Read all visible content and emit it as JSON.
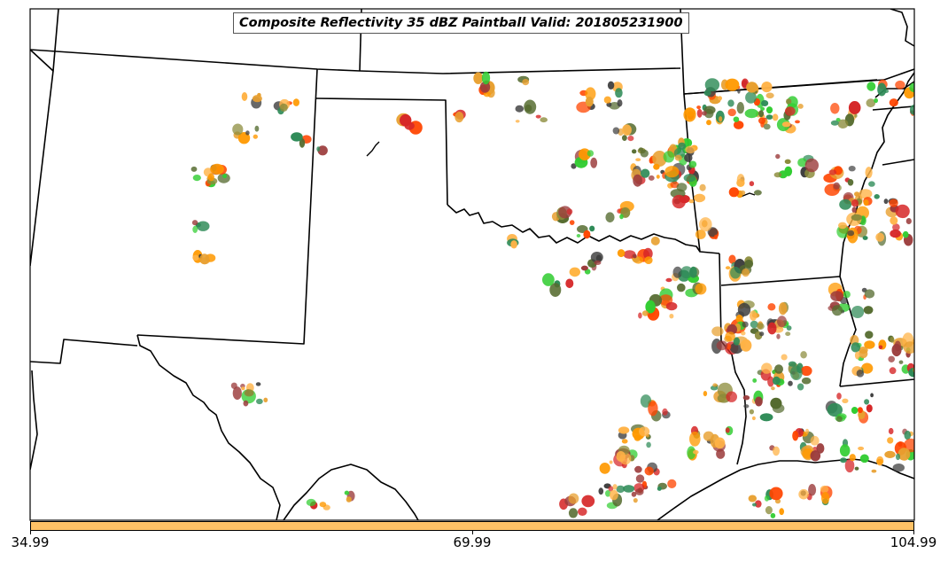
{
  "title": "Composite Reflectivity 35 dBZ Paintball Valid: 201805231900",
  "colorbar": {
    "color": "#ffc266",
    "ticks": [
      "34.99",
      "69.99",
      "104.99"
    ]
  },
  "colors": {
    "land": "#ffffff",
    "boundaries": "#000000",
    "member_palette": [
      "#d62728",
      "#ff4500",
      "#ff9900",
      "#ffb347",
      "#32cd32",
      "#2e8b57",
      "#8b8b3a",
      "#9b3b3b",
      "#556b2f",
      "#404040",
      "#e8a030"
    ]
  }
}
